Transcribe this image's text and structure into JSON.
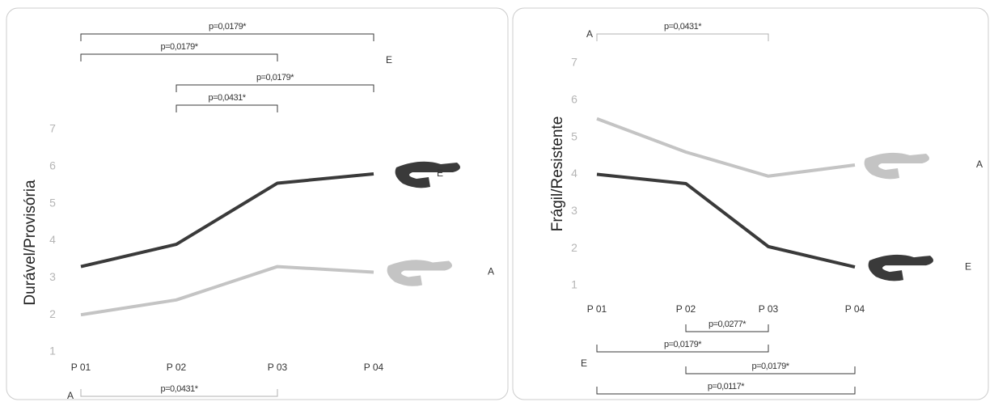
{
  "chart_data": [
    {
      "type": "line",
      "y_label": "Durável/Provisória",
      "categories": [
        "P 01",
        "P 02",
        "P 03",
        "P 04"
      ],
      "ylim": [
        1,
        7
      ],
      "yticks": [
        1,
        2,
        3,
        4,
        5,
        6,
        7
      ],
      "series": [
        {
          "name": "E",
          "color": "#3a3a3a",
          "values": [
            3.3,
            3.9,
            5.55,
            5.8
          ]
        },
        {
          "name": "A",
          "color": "#c4c4c4",
          "values": [
            2.0,
            2.4,
            3.3,
            3.15
          ]
        }
      ],
      "bracket_groups": [
        {
          "label": "E",
          "color": "#3a3a3a",
          "brackets": [
            {
              "label": "p=0,0179*",
              "from": "P 01",
              "to": "P 04"
            },
            {
              "label": "p=0,0179*",
              "from": "P 01",
              "to": "P 03"
            },
            {
              "label": "p=0,0179*",
              "from": "P 02",
              "to": "P 04"
            },
            {
              "label": "p=0,0431*",
              "from": "P 02",
              "to": "P 03"
            }
          ]
        },
        {
          "label": "A",
          "color": "#b0b0b0",
          "brackets": [
            {
              "label": "p=0,0431*",
              "from": "P 01",
              "to": "P 03"
            }
          ]
        }
      ]
    },
    {
      "type": "line",
      "y_label": "Frágil/Resistente",
      "categories": [
        "P 01",
        "P 02",
        "P 03",
        "P 04"
      ],
      "ylim": [
        1,
        7
      ],
      "yticks": [
        1,
        2,
        3,
        4,
        5,
        6,
        7
      ],
      "series": [
        {
          "name": "E",
          "color": "#3a3a3a",
          "values": [
            4.0,
            3.75,
            2.05,
            1.5
          ]
        },
        {
          "name": "A",
          "color": "#c4c4c4",
          "values": [
            5.5,
            4.6,
            3.95,
            4.25
          ]
        }
      ],
      "bracket_groups": [
        {
          "label": "A",
          "color": "#b0b0b0",
          "brackets": [
            {
              "label": "p=0,0431*",
              "from": "P 01",
              "to": "P 03"
            }
          ]
        },
        {
          "label": "E",
          "color": "#3a3a3a",
          "brackets": [
            {
              "label": "p=0,0277*",
              "from": "P 02",
              "to": "P 03"
            },
            {
              "label": "p=0,0179*",
              "from": "P 01",
              "to": "P 03"
            },
            {
              "label": "p=0,0179*",
              "from": "P 02",
              "to": "P 04"
            },
            {
              "label": "p=0,0117*",
              "from": "P 01",
              "to": "P 04"
            }
          ]
        }
      ]
    }
  ]
}
